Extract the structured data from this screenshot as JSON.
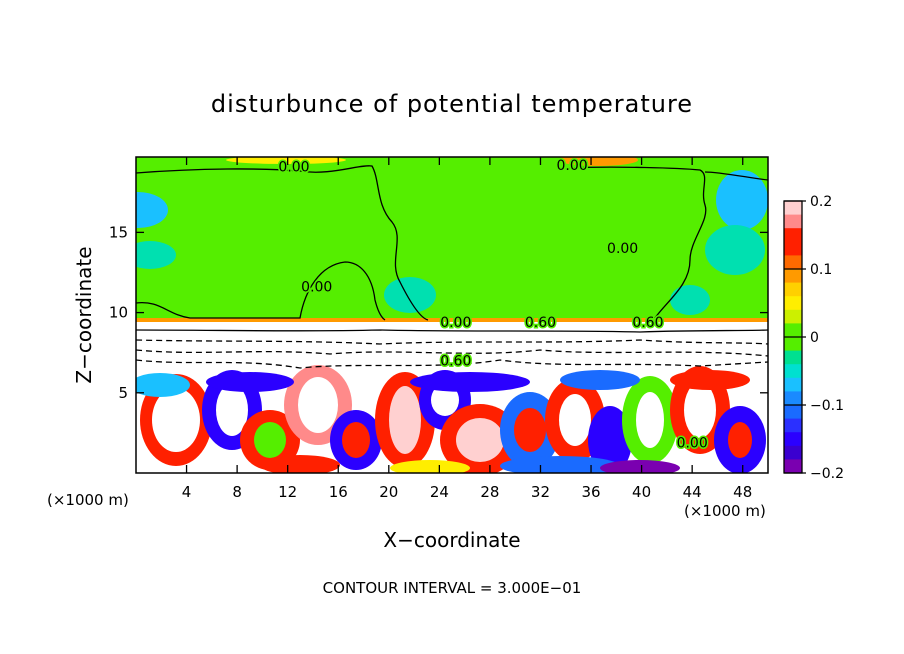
{
  "chart_data": {
    "type": "heatmap",
    "title": "disturbunce of potential temperature",
    "xlabel": "X−coordinate",
    "ylabel": "Z−coordinate",
    "x_unit": "(×1000 m)",
    "x_unit_right": "(×1000 m)",
    "xlim": [
      0,
      50
    ],
    "ylim": [
      0,
      19.7
    ],
    "xticks": [
      4,
      8,
      12,
      16,
      20,
      24,
      28,
      32,
      36,
      40,
      44,
      48
    ],
    "yticks": [
      5,
      10,
      15
    ],
    "footer": "CONTOUR INTERVAL = 3.000E−01",
    "colorbar": {
      "range": [
        -0.2,
        0.2
      ],
      "tick_values": [
        0.2,
        0.1,
        0,
        -0.1,
        -0.2
      ],
      "tick_labels": [
        "0.2",
        "0.1",
        "0",
        "−0.1",
        "−0.2"
      ]
    },
    "contour_labels": [
      {
        "text": "0.00",
        "x": 12.5,
        "z": 18.8
      },
      {
        "text": "0.00",
        "x": 34.5,
        "z": 18.9
      },
      {
        "text": "0.00",
        "x": 38.5,
        "z": 13.7
      },
      {
        "text": "0.00",
        "x": 14.3,
        "z": 11.3
      },
      {
        "text": "0.00",
        "x": 25.3,
        "z": 9.1
      },
      {
        "text": "0.60",
        "x": 32.0,
        "z": 9.1
      },
      {
        "text": "0.60",
        "x": 40.5,
        "z": 9.1
      },
      {
        "text": "0.60",
        "x": 25.3,
        "z": 6.7
      },
      {
        "text": "0.00",
        "x": 44.0,
        "z": 1.6
      }
    ]
  },
  "colors": {
    "background_green": "#55ee00",
    "palette": [
      "#7a00b0",
      "#2b00ff",
      "#1a6bff",
      "#1ac0ff",
      "#00e0b0",
      "#55ee00",
      "#ccf000",
      "#ffee00",
      "#ff9a00",
      "#ff2000",
      "#ff8a8a",
      "#ffd0d0"
    ]
  }
}
